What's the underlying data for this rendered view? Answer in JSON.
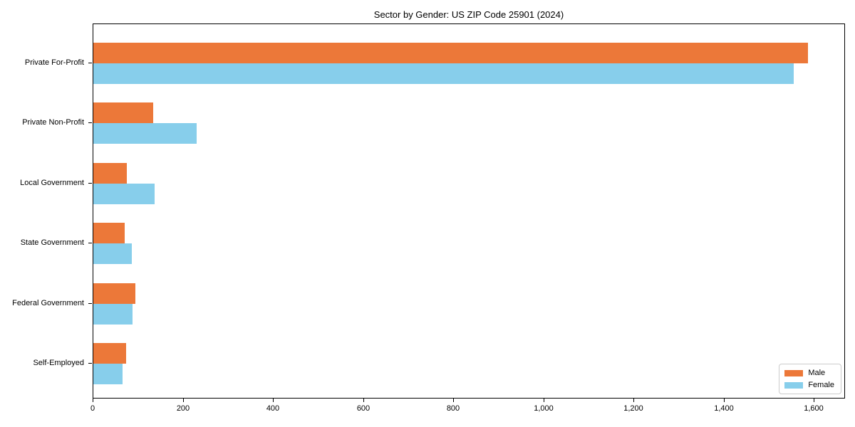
{
  "chart_data": {
    "type": "bar",
    "orientation": "horizontal",
    "title": "Sector by Gender: US ZIP Code 25901 (2024)",
    "categories": [
      "Private For-Profit",
      "Private Non-Profit",
      "Local Government",
      "State Government",
      "Federal Government",
      "Self-Employed"
    ],
    "series": [
      {
        "name": "Male",
        "color": "#EC7839",
        "values": [
          1586,
          133,
          75,
          69,
          94,
          72
        ]
      },
      {
        "name": "Female",
        "color": "#87CEEB",
        "values": [
          1553,
          229,
          136,
          86,
          87,
          65
        ]
      }
    ],
    "xlabel": "",
    "ylabel": "",
    "xlim": [
      0,
      1666
    ],
    "xticks": [
      {
        "value": 0,
        "label": "0"
      },
      {
        "value": 200,
        "label": "200"
      },
      {
        "value": 400,
        "label": "400"
      },
      {
        "value": 600,
        "label": "600"
      },
      {
        "value": 800,
        "label": "800"
      },
      {
        "value": 1000,
        "label": "1,000"
      },
      {
        "value": 1200,
        "label": "1,200"
      },
      {
        "value": 1400,
        "label": "1,400"
      },
      {
        "value": 1600,
        "label": "1,600"
      }
    ],
    "grid": false,
    "legend": {
      "position": "lower right",
      "entries": [
        "Male",
        "Female"
      ]
    }
  }
}
